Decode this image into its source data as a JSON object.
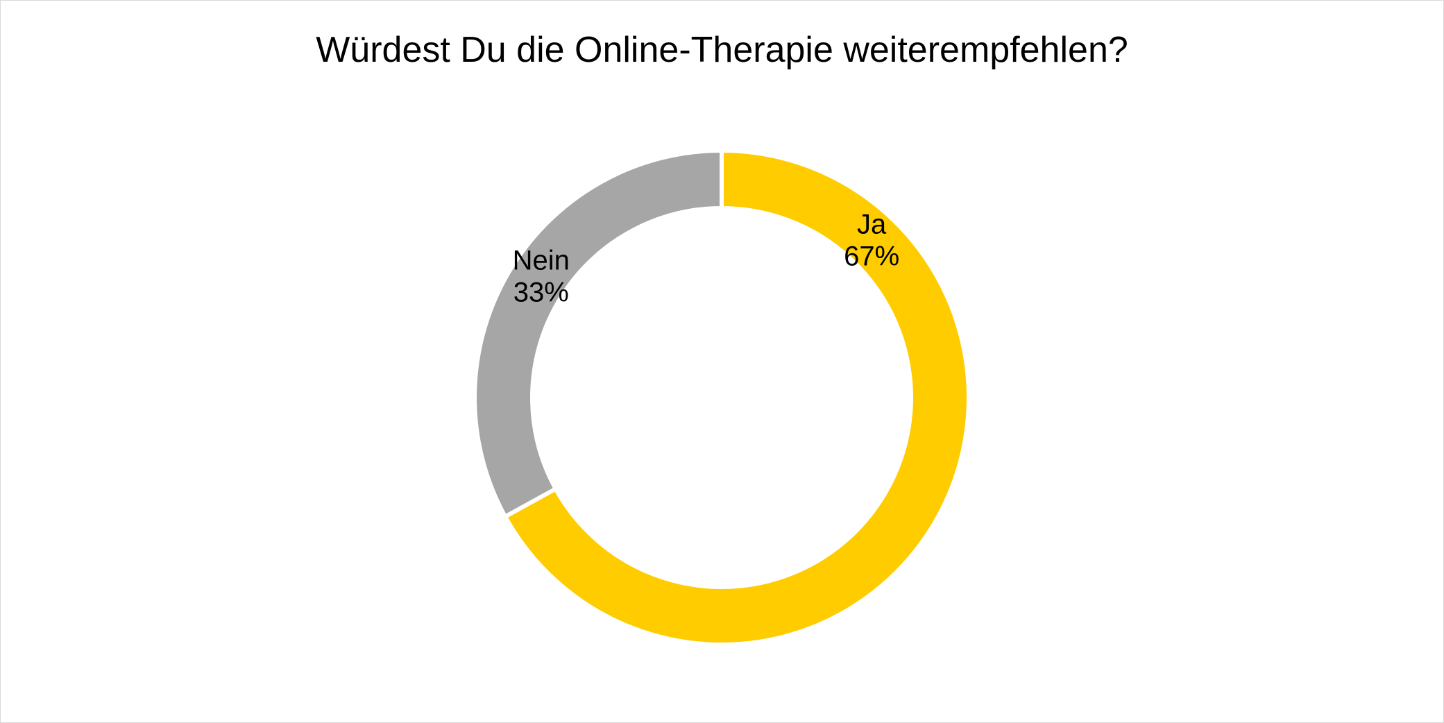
{
  "chart_data": {
    "type": "pie",
    "variant": "donut",
    "title": "Würdest Du die Online-Therapie weiterempfehlen?",
    "slices": [
      {
        "label": "Ja",
        "value": 67,
        "value_label": "67%",
        "color": "#FFCC00"
      },
      {
        "label": "Nein",
        "value": 33,
        "value_label": "33%",
        "color": "#A6A6A6"
      }
    ],
    "start_angle_deg": 0,
    "direction": "clockwise",
    "legend": "none"
  }
}
